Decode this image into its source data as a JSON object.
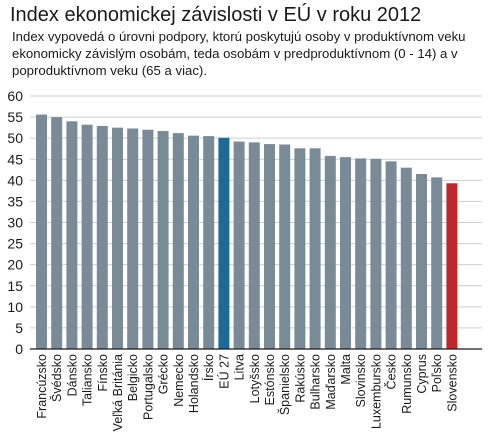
{
  "header": {
    "title": "Index ekonomickej závislosti v EÚ v roku 2012",
    "subtitle": "Index vypovedá o úrovni podpory, ktorú poskytujú osoby v produktívnom veku ekonomicky závislým osobám, teda osobám v predproduktívnom (0 - 14) a v poproduktívnom veku (65 a viac)."
  },
  "colors": {
    "bar_default": "#7a8b98",
    "bar_eu": "#1c6a95",
    "bar_slovakia": "#c0272d",
    "grid": "#cfcfcf",
    "axis": "#1a1a1a"
  },
  "chart_data": {
    "type": "bar",
    "title": "Index ekonomickej závislosti v EÚ v roku 2012",
    "subtitle": "Index vypovedá o úrovni podpory, ktorú poskytujú osoby v produktívnom veku ekonomicky závislým osobám, teda osobám v predproduktívnom (0 - 14) a v poproduktívnom veku (65 a viac).",
    "xlabel": "",
    "ylabel": "",
    "ylim": [
      0,
      60
    ],
    "yticks": [
      0,
      5,
      10,
      15,
      20,
      25,
      30,
      35,
      40,
      45,
      50,
      55,
      60
    ],
    "grid": true,
    "categories": [
      "Francúzsko",
      "Švédsko",
      "Dánsko",
      "Taliansko",
      "Fínsko",
      "Veľká Británia",
      "Belgicko",
      "Portugalsko",
      "Grécko",
      "Nemecko",
      "Holandsko",
      "Írsko",
      "EÚ 27",
      "Litva",
      "Lotyšsko",
      "Estónsko",
      "Španielsko",
      "Rakúsko",
      "Bulharsko",
      "Maďarsko",
      "Malta",
      "Slovinsko",
      "Luxembursko",
      "Česko",
      "Rumunsko",
      "Cyprus",
      "Poľsko",
      "Slovensko"
    ],
    "values": [
      55.6,
      55.0,
      54.0,
      53.2,
      52.9,
      52.5,
      52.3,
      52.0,
      51.7,
      51.2,
      50.6,
      50.5,
      50.1,
      49.2,
      49.0,
      48.6,
      48.5,
      47.6,
      47.6,
      45.8,
      45.5,
      45.2,
      45.1,
      44.5,
      43.0,
      41.5,
      40.7,
      39.3
    ],
    "highlight": {
      "EÚ 27": "#1c6a95",
      "Slovensko": "#c0272d"
    }
  }
}
